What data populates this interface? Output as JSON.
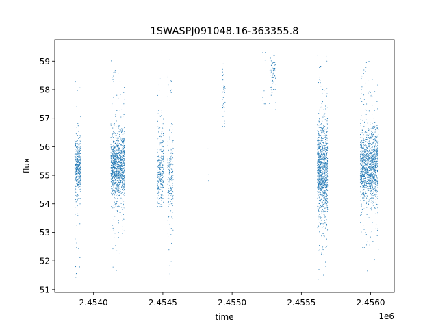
{
  "chart_data": {
    "type": "scatter",
    "title": "1SWASPJ091048.16-363355.8",
    "xlabel": "time",
    "ylabel": "flux",
    "x_offset_label": "1e6",
    "xlim": [
      2.45372,
      2.45617
    ],
    "ylim": [
      50.9,
      59.75
    ],
    "x_ticks": [
      2.454,
      2.4545,
      2.455,
      2.4555,
      2.456
    ],
    "x_tick_labels": [
      "2.4540",
      "2.4545",
      "2.4550",
      "2.4555",
      "2.4560"
    ],
    "y_ticks": [
      51,
      52,
      53,
      54,
      55,
      56,
      57,
      58,
      59
    ],
    "y_tick_labels": [
      "51",
      "52",
      "53",
      "54",
      "55",
      "56",
      "57",
      "58",
      "59"
    ],
    "grid": false,
    "legend": "none",
    "series": [
      {
        "color": "#1f77b4",
        "marker": "tiny-point",
        "clusters": [
          {
            "x_range": [
              2.453865,
              2.45391
            ],
            "center": 55.3,
            "spread": 0.45,
            "y_range": [
              51.4,
              58.8
            ],
            "count": 450
          },
          {
            "x_range": [
              2.454125,
              2.454225
            ],
            "center": 55.3,
            "spread": 0.55,
            "y_range": [
              51.4,
              59.1
            ],
            "count": 1100
          },
          {
            "x_range": [
              2.45446,
              2.454505
            ],
            "center": 55.1,
            "spread": 0.6,
            "y_range": [
              53.9,
              58.5
            ],
            "count": 300
          },
          {
            "x_range": [
              2.454535,
              2.454575
            ],
            "center": 55.0,
            "spread": 0.8,
            "y_range": [
              51.3,
              59.3
            ],
            "count": 200
          },
          {
            "x_range": [
              2.454825,
              2.454835
            ],
            "center": 54.9,
            "spread": 0.3,
            "y_range": [
              54.3,
              56.1
            ],
            "count": 4
          },
          {
            "x_range": [
              2.45493,
              2.45495
            ],
            "center": 57.7,
            "spread": 0.6,
            "y_range": [
              56.7,
              58.9
            ],
            "count": 40
          },
          {
            "x_range": [
              2.45522,
              2.45524
            ],
            "center": 58.6,
            "spread": 0.6,
            "y_range": [
              57.5,
              59.3
            ],
            "count": 8
          },
          {
            "x_range": [
              2.45527,
              2.455315
            ],
            "center": 58.5,
            "spread": 0.35,
            "y_range": [
              57.3,
              59.2
            ],
            "count": 70
          },
          {
            "x_range": [
              2.455615,
              2.45569
            ],
            "center": 55.2,
            "spread": 0.8,
            "y_range": [
              51.3,
              59.3
            ],
            "count": 1100
          },
          {
            "x_range": [
              2.455925,
              2.456055
            ],
            "center": 55.3,
            "spread": 0.6,
            "y_range": [
              51.4,
              59.2
            ],
            "count": 1300
          }
        ]
      }
    ]
  }
}
